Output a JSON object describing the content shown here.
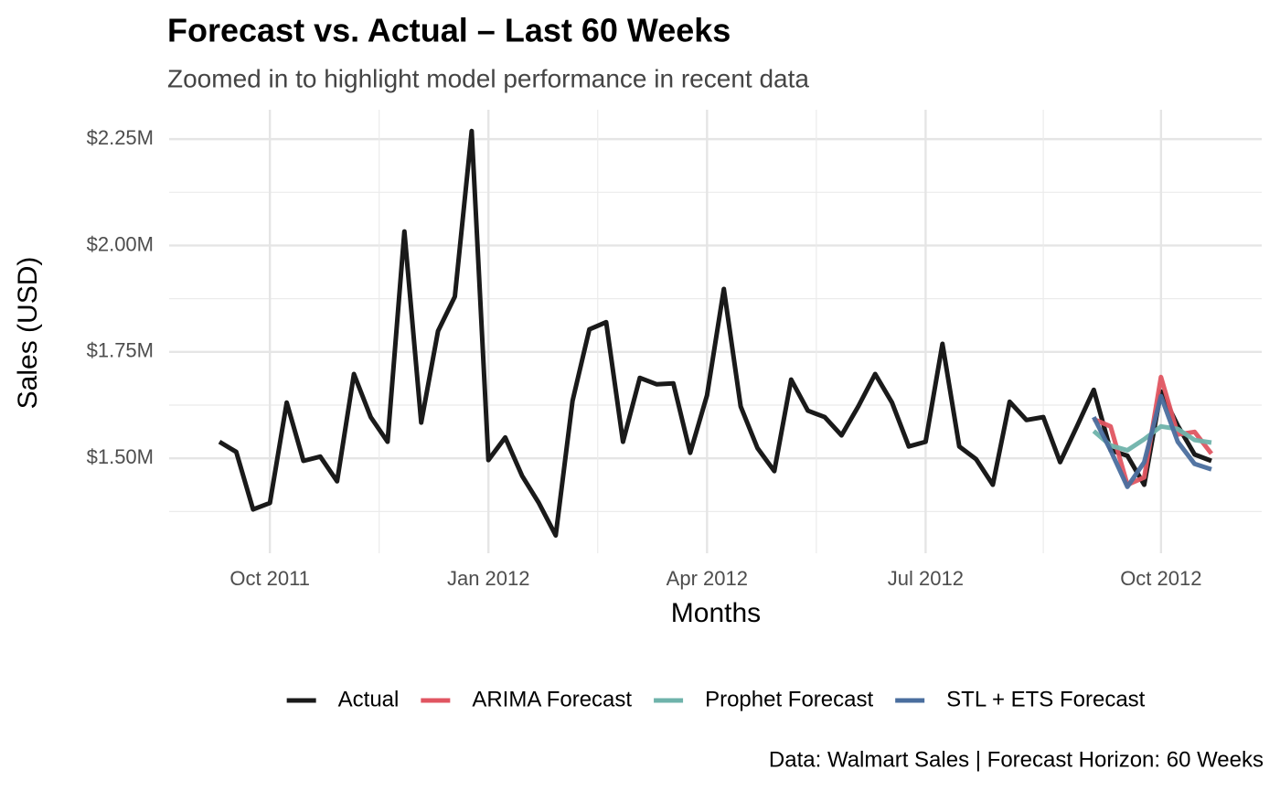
{
  "chart_data": {
    "type": "line",
    "title": "Forecast vs. Actual – Last 60 Weeks",
    "subtitle": "Zoomed in to highlight model performance in recent data",
    "x_label": "Months",
    "y_label": "Sales (USD)",
    "caption": "Data: Walmart Sales | Forecast Horizon: 60 Weeks",
    "categories": [
      null,
      null,
      null,
      "Oct 2011",
      null,
      null,
      null,
      null,
      null,
      null,
      null,
      null,
      null,
      null,
      null,
      null,
      "Jan 2012",
      null,
      null,
      null,
      null,
      null,
      null,
      null,
      null,
      null,
      null,
      null,
      null,
      "Apr 2012",
      null,
      null,
      null,
      null,
      null,
      null,
      null,
      null,
      null,
      null,
      null,
      null,
      "Jul 2012",
      null,
      null,
      null,
      null,
      null,
      null,
      null,
      null,
      null,
      null,
      null,
      null,
      null,
      "Oct 2012",
      null,
      null,
      null
    ],
    "series": [
      {
        "name": "Actual",
        "color": "#1a1a1a",
        "values": [
          1.539,
          1.515,
          1.38,
          1.395,
          1.631,
          1.494,
          1.504,
          1.446,
          1.698,
          1.597,
          1.539,
          2.033,
          1.584,
          1.799,
          1.88,
          2.269,
          1.496,
          1.549,
          1.459,
          1.395,
          1.319,
          1.635,
          1.803,
          1.82,
          1.539,
          1.689,
          1.674,
          1.676,
          1.513,
          1.648,
          1.898,
          1.622,
          1.524,
          1.47,
          1.685,
          1.612,
          1.597,
          1.554,
          1.622,
          1.698,
          1.631,
          1.528,
          1.539,
          1.769,
          1.528,
          1.498,
          1.438,
          1.633,
          1.59,
          1.597,
          1.491,
          1.575,
          1.661,
          1.519,
          1.506,
          1.438,
          1.657,
          1.577,
          1.509,
          1.494
        ]
      },
      {
        "name": "ARIMA Forecast",
        "color": "#e05561",
        "values": [
          null,
          null,
          null,
          null,
          null,
          null,
          null,
          null,
          null,
          null,
          null,
          null,
          null,
          null,
          null,
          null,
          null,
          null,
          null,
          null,
          null,
          null,
          null,
          null,
          null,
          null,
          null,
          null,
          null,
          null,
          null,
          null,
          null,
          null,
          null,
          null,
          null,
          null,
          null,
          null,
          null,
          null,
          null,
          null,
          null,
          null,
          null,
          null,
          null,
          null,
          null,
          null,
          1.592,
          1.575,
          1.438,
          1.455,
          1.691,
          1.556,
          1.562,
          1.511
        ]
      },
      {
        "name": "Prophet Forecast",
        "color": "#6fb3ab",
        "values": [
          null,
          null,
          null,
          null,
          null,
          null,
          null,
          null,
          null,
          null,
          null,
          null,
          null,
          null,
          null,
          null,
          null,
          null,
          null,
          null,
          null,
          null,
          null,
          null,
          null,
          null,
          null,
          null,
          null,
          null,
          null,
          null,
          null,
          null,
          null,
          null,
          null,
          null,
          null,
          null,
          null,
          null,
          null,
          null,
          null,
          null,
          null,
          null,
          null,
          null,
          null,
          null,
          1.564,
          1.53,
          1.519,
          1.545,
          1.575,
          1.569,
          1.543,
          1.537
        ]
      },
      {
        "name": "STL + ETS Forecast",
        "color": "#4a6e9e",
        "values": [
          null,
          null,
          null,
          null,
          null,
          null,
          null,
          null,
          null,
          null,
          null,
          null,
          null,
          null,
          null,
          null,
          null,
          null,
          null,
          null,
          null,
          null,
          null,
          null,
          null,
          null,
          null,
          null,
          null,
          null,
          null,
          null,
          null,
          null,
          null,
          null,
          null,
          null,
          null,
          null,
          null,
          null,
          null,
          null,
          null,
          null,
          null,
          null,
          null,
          null,
          null,
          null,
          1.597,
          1.519,
          1.433,
          1.491,
          1.646,
          1.539,
          1.487,
          1.474
        ]
      }
    ],
    "ylim": [
      1.277,
      2.319
    ],
    "yticks": [
      {
        "value": 1.5,
        "label": "$1.50M"
      },
      {
        "value": 1.75,
        "label": "$1.75M"
      },
      {
        "value": 2.0,
        "label": "$2.00M"
      },
      {
        "value": 2.25,
        "label": "$2.25M"
      }
    ],
    "minor_yticks": [
      1.375,
      1.625,
      1.875,
      2.125
    ],
    "grid": true,
    "legend": "bottom"
  }
}
